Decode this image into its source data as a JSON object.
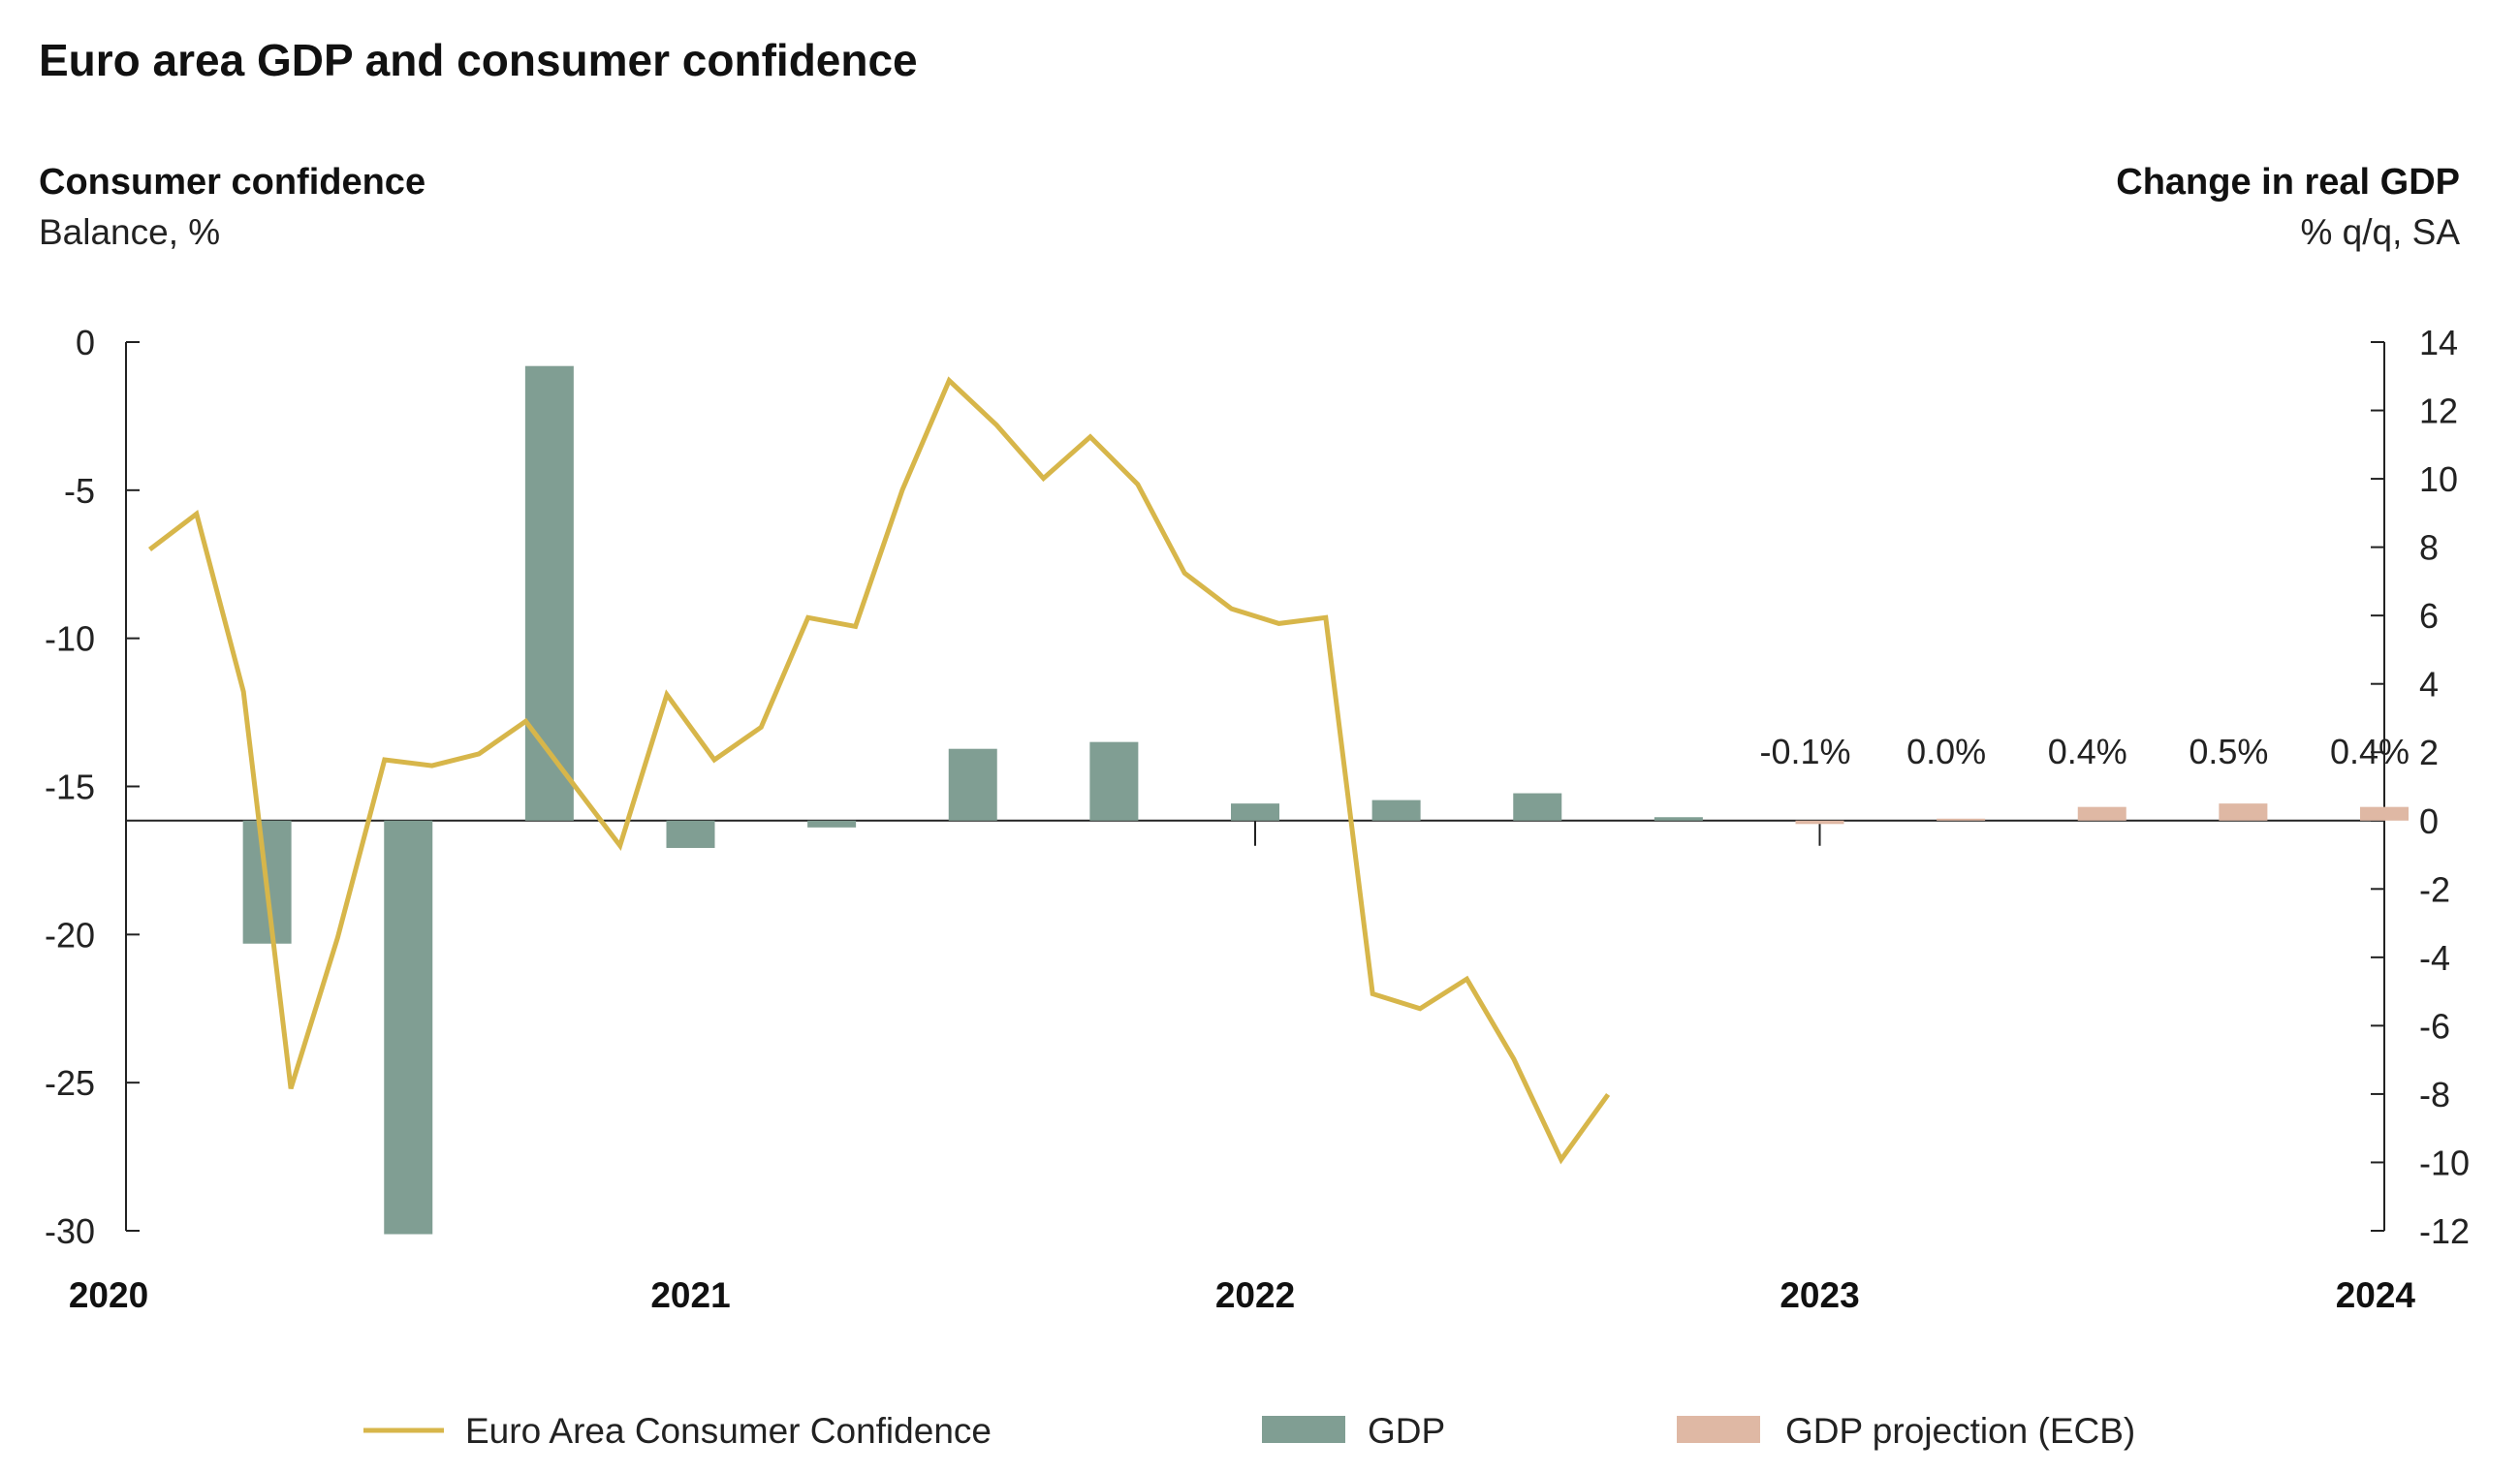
{
  "chart_data": {
    "type": "bar+line",
    "title": "Euro area GDP and consumer confidence",
    "left_axis": {
      "title": "Consumer confidence",
      "subtitle": "Balance, %",
      "range": [
        -30,
        0
      ],
      "ticks": [
        0,
        -5,
        -10,
        -15,
        -20,
        -25,
        -30
      ],
      "tick_labels": [
        "0",
        "-5",
        "-10",
        "-15",
        "-20",
        "-25",
        "-30"
      ]
    },
    "right_axis": {
      "title": "Change in real GDP",
      "subtitle": "% q/q, SA",
      "range": [
        -12,
        14
      ],
      "ticks": [
        14,
        12,
        10,
        8,
        6,
        4,
        2,
        0,
        -2,
        -4,
        -6,
        -8,
        -10,
        -12
      ],
      "tick_labels": [
        "14",
        "12",
        "10",
        "8",
        "6",
        "4",
        "2",
        "0",
        "-2",
        "-4",
        "-6",
        "-8",
        "-10",
        "-12"
      ]
    },
    "x_axis": {
      "range": [
        2020.0,
        2024.0
      ],
      "years": [
        2020,
        2021,
        2022,
        2023,
        2024
      ],
      "year_labels": [
        "2020",
        "2021",
        "2022",
        "2023",
        "2024"
      ]
    },
    "colors": {
      "line": "#d7b64a",
      "gdp": "#809e93",
      "projection": "#dfb8a4",
      "axis": "#222222"
    },
    "series": [
      {
        "name": "Euro Area Consumer Confidence",
        "axis": "left",
        "kind": "line",
        "points": [
          [
            2020.042,
            -7.0
          ],
          [
            2020.125,
            -5.8
          ],
          [
            2020.208,
            -11.8
          ],
          [
            2020.292,
            -25.2
          ],
          [
            2020.375,
            -20.1
          ],
          [
            2020.458,
            -14.1
          ],
          [
            2020.542,
            -14.3
          ],
          [
            2020.625,
            -13.9
          ],
          [
            2020.708,
            -12.8
          ],
          [
            2020.875,
            -17.0
          ],
          [
            2020.958,
            -11.9
          ],
          [
            2021.042,
            -14.1
          ],
          [
            2021.125,
            -13.0
          ],
          [
            2021.208,
            -9.3
          ],
          [
            2021.292,
            -9.6
          ],
          [
            2021.375,
            -5.0
          ],
          [
            2021.458,
            -1.3
          ],
          [
            2021.542,
            -2.8
          ],
          [
            2021.625,
            -4.6
          ],
          [
            2021.708,
            -3.2
          ],
          [
            2021.792,
            -4.8
          ],
          [
            2021.875,
            -7.8
          ],
          [
            2021.958,
            -9.0
          ],
          [
            2022.042,
            -9.5
          ],
          [
            2022.125,
            -9.3
          ],
          [
            2022.208,
            -22.0
          ],
          [
            2022.292,
            -22.5
          ],
          [
            2022.375,
            -21.5
          ],
          [
            2022.458,
            -24.2
          ],
          [
            2022.542,
            -27.6
          ],
          [
            2022.625,
            -25.4
          ]
        ]
      },
      {
        "name": "GDP",
        "axis": "right",
        "kind": "bar",
        "points": [
          [
            2020.25,
            -3.6
          ],
          [
            2020.5,
            -12.1
          ],
          [
            2020.75,
            13.3
          ],
          [
            2021.0,
            -0.8
          ],
          [
            2021.25,
            -0.2
          ],
          [
            2021.5,
            2.1
          ],
          [
            2021.75,
            2.3
          ],
          [
            2022.0,
            0.5
          ],
          [
            2022.25,
            0.6
          ],
          [
            2022.5,
            0.8
          ],
          [
            2022.75,
            0.1
          ]
        ]
      },
      {
        "name": "GDP projection (ECB)",
        "axis": "right",
        "kind": "bar",
        "points": [
          [
            2023.0,
            -0.1
          ],
          [
            2023.25,
            0.0
          ],
          [
            2023.5,
            0.4
          ],
          [
            2023.75,
            0.5
          ],
          [
            2024.0,
            0.4
          ]
        ],
        "labels": [
          "-0.1%",
          "0.0%",
          "0.4%",
          "0.5%",
          "0.4%"
        ]
      }
    ],
    "legend": [
      "Euro Area Consumer Confidence",
      "GDP",
      "GDP projection (ECB)"
    ]
  }
}
